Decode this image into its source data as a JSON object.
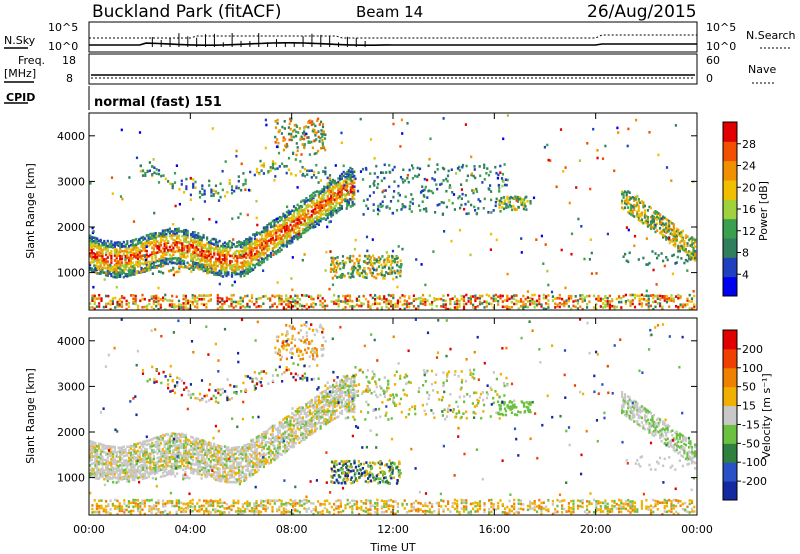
{
  "header": {
    "site": "Buckland Park (fitACF)",
    "beam": "Beam 14",
    "date": "26/Aug/2015"
  },
  "summary_panels": {
    "nsky_label": "N.Sky",
    "nsearch_label": "N.Search",
    "freq_label_line1": "Freq.",
    "freq_label_line2": "[MHz]",
    "nave_label": "Nave",
    "cpid_label": "CPID",
    "cpid_value": "normal (fast) 151",
    "noise_ticks": [
      "10^5",
      "10^0"
    ],
    "freq_ticks": [
      "18",
      "8"
    ],
    "nave_ticks": [
      "60",
      "0"
    ]
  },
  "chart_data": [
    {
      "type": "heatmap",
      "name": "power",
      "ylabel": "Slant Range [km]",
      "xlabel": "",
      "y_ticks": [
        "4000",
        "3000",
        "2000",
        "1000"
      ],
      "ylim": [
        180,
        4500
      ],
      "colorbar_label": "Power [dB]",
      "colorbar_ticks": [
        "28",
        "24",
        "20",
        "16",
        "12",
        "8",
        "4"
      ],
      "colors": [
        "#0000f0",
        "#2040c0",
        "#2f7f5f",
        "#3aa050",
        "#9fd23c",
        "#f0c000",
        "#f09000",
        "#f05000",
        "#e00000"
      ]
    },
    {
      "type": "heatmap",
      "name": "velocity",
      "ylabel": "Slant Range [km]",
      "xlabel": "Time UT",
      "x_ticks": [
        "00:00",
        "04:00",
        "08:00",
        "12:00",
        "16:00",
        "20:00",
        "00:00"
      ],
      "y_ticks": [
        "4000",
        "3000",
        "2000",
        "1000"
      ],
      "ylim": [
        180,
        4500
      ],
      "colorbar_label": "Velocity [m s⁻¹]",
      "colorbar_ticks": [
        "200",
        "100",
        "50",
        "15",
        "-15",
        "-50",
        "-100",
        "-200"
      ],
      "colors": [
        "#1428a0",
        "#2a50c8",
        "#2f7f3f",
        "#6cc040",
        "#c8c8c8",
        "#f0b000",
        "#f08000",
        "#f04000",
        "#e00000"
      ]
    }
  ]
}
